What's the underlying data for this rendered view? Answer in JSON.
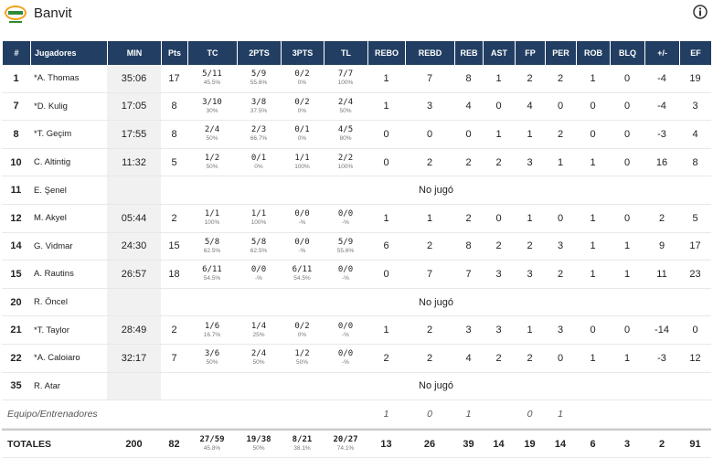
{
  "header": {
    "title": "Banvit"
  },
  "table": {
    "columns": [
      "#",
      "Jugadores",
      "MIN",
      "Pts",
      "TC",
      "2PTS",
      "3PTS",
      "TL",
      "REBO",
      "REBD",
      "REB",
      "AST",
      "FP",
      "PER",
      "ROB",
      "BLQ",
      "+/-",
      "EF"
    ],
    "rows": [
      {
        "num": "1",
        "name": "*A. Thomas",
        "min": "35:06",
        "pts": "17",
        "shots": [
          [
            "5/11",
            "45.5%"
          ],
          [
            "5/9",
            "55.6%"
          ],
          [
            "0/2",
            "0%"
          ],
          [
            "7/7",
            "100%"
          ]
        ],
        "stats": [
          "1",
          "7",
          "8",
          "1",
          "2",
          "2",
          "1",
          "0",
          "-4",
          "19"
        ]
      },
      {
        "num": "7",
        "name": "*D. Kulig",
        "min": "17:05",
        "pts": "8",
        "shots": [
          [
            "3/10",
            "30%"
          ],
          [
            "3/8",
            "37.5%"
          ],
          [
            "0/2",
            "0%"
          ],
          [
            "2/4",
            "50%"
          ]
        ],
        "stats": [
          "1",
          "3",
          "4",
          "0",
          "4",
          "0",
          "0",
          "0",
          "-4",
          "3"
        ]
      },
      {
        "num": "8",
        "name": "*T. Geçim",
        "min": "17:55",
        "pts": "8",
        "shots": [
          [
            "2/4",
            "50%"
          ],
          [
            "2/3",
            "66.7%"
          ],
          [
            "0/1",
            "0%"
          ],
          [
            "4/5",
            "80%"
          ]
        ],
        "stats": [
          "0",
          "0",
          "0",
          "1",
          "1",
          "2",
          "0",
          "0",
          "-3",
          "4"
        ]
      },
      {
        "num": "10",
        "name": "C. Altintig",
        "min": "11:32",
        "pts": "5",
        "shots": [
          [
            "1/2",
            "50%"
          ],
          [
            "0/1",
            "0%"
          ],
          [
            "1/1",
            "100%"
          ],
          [
            "2/2",
            "100%"
          ]
        ],
        "stats": [
          "0",
          "2",
          "2",
          "2",
          "3",
          "1",
          "1",
          "0",
          "16",
          "8"
        ]
      },
      {
        "num": "11",
        "name": "E. Şenel",
        "note": "No jugó"
      },
      {
        "num": "12",
        "name": "M. Akyel",
        "min": "05:44",
        "pts": "2",
        "shots": [
          [
            "1/1",
            "100%"
          ],
          [
            "1/1",
            "100%"
          ],
          [
            "0/0",
            "-%"
          ],
          [
            "0/0",
            "-%"
          ]
        ],
        "stats": [
          "1",
          "1",
          "2",
          "0",
          "1",
          "0",
          "1",
          "0",
          "2",
          "5"
        ]
      },
      {
        "num": "14",
        "name": "G. Vidmar",
        "min": "24:30",
        "pts": "15",
        "shots": [
          [
            "5/8",
            "62.5%"
          ],
          [
            "5/8",
            "62.5%"
          ],
          [
            "0/0",
            "-%"
          ],
          [
            "5/9",
            "55.6%"
          ]
        ],
        "stats": [
          "6",
          "2",
          "8",
          "2",
          "2",
          "3",
          "1",
          "1",
          "9",
          "17"
        ]
      },
      {
        "num": "15",
        "name": "A. Rautins",
        "min": "26:57",
        "pts": "18",
        "shots": [
          [
            "6/11",
            "54.5%"
          ],
          [
            "0/0",
            "-%"
          ],
          [
            "6/11",
            "54.5%"
          ],
          [
            "0/0",
            "-%"
          ]
        ],
        "stats": [
          "0",
          "7",
          "7",
          "3",
          "3",
          "2",
          "1",
          "1",
          "11",
          "23"
        ]
      },
      {
        "num": "20",
        "name": "R. Öncel",
        "note": "No jugó"
      },
      {
        "num": "21",
        "name": "*T. Taylor",
        "min": "28:49",
        "pts": "2",
        "shots": [
          [
            "1/6",
            "16.7%"
          ],
          [
            "1/4",
            "25%"
          ],
          [
            "0/2",
            "0%"
          ],
          [
            "0/0",
            "-%"
          ]
        ],
        "stats": [
          "1",
          "2",
          "3",
          "3",
          "1",
          "3",
          "0",
          "0",
          "-14",
          "0"
        ]
      },
      {
        "num": "22",
        "name": "*A. Caloiaro",
        "min": "32:17",
        "pts": "7",
        "shots": [
          [
            "3/6",
            "50%"
          ],
          [
            "2/4",
            "50%"
          ],
          [
            "1/2",
            "50%"
          ],
          [
            "0/0",
            "-%"
          ]
        ],
        "stats": [
          "2",
          "2",
          "4",
          "2",
          "2",
          "0",
          "1",
          "1",
          "-3",
          "12"
        ]
      },
      {
        "num": "35",
        "name": "R. Atar",
        "note": "No jugó"
      }
    ],
    "team": {
      "label": "Equipo/Entrenadores",
      "cells": [
        null,
        null,
        null,
        null,
        null,
        null,
        "1",
        "0",
        "1",
        null,
        "0",
        "1",
        null,
        null,
        null,
        null
      ]
    },
    "totals": {
      "label": "TOTALES",
      "min": "200",
      "pts": "82",
      "shots": [
        [
          "27/59",
          "45.8%"
        ],
        [
          "19/38",
          "50%"
        ],
        [
          "8/21",
          "38.1%"
        ],
        [
          "20/27",
          "74.1%"
        ]
      ],
      "stats": [
        "13",
        "26",
        "39",
        "14",
        "19",
        "14",
        "6",
        "3",
        "2",
        "91"
      ]
    }
  }
}
